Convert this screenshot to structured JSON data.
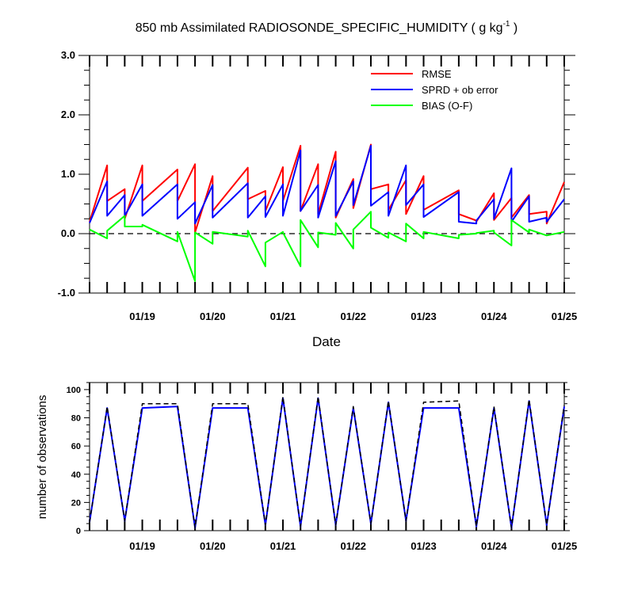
{
  "chart_data": [
    {
      "type": "line",
      "title": "850 mb Assimilated RADIOSONDE_SPECIFIC_HUMIDITY ( g kg",
      "title_exponent": "-1",
      "title_end": " )",
      "xlabel": "Date",
      "ylabel": "",
      "ylim": [
        -1.0,
        3.0
      ],
      "xlim": [
        0,
        6.75
      ],
      "x_ticks": [
        0.75,
        1.75,
        2.75,
        3.75,
        4.75,
        5.75,
        6.75
      ],
      "x_tick_labels": [
        "01/19",
        "01/20",
        "01/21",
        "01/22",
        "01/23",
        "01/24",
        "01/25"
      ],
      "y_ticks": [
        -1.0,
        0.0,
        1.0,
        2.0,
        3.0
      ],
      "y_tick_labels": [
        "-1.0",
        "0.0",
        "1.0",
        "2.0",
        "3.0"
      ],
      "zero_line": true,
      "legend_position": "top-right",
      "series": [
        {
          "name": "RMSE",
          "color": "#ff0000",
          "x": [
            0.0,
            0.25,
            0.25,
            0.5,
            0.5,
            0.75,
            0.75,
            1.25,
            1.25,
            1.5,
            1.5,
            1.75,
            1.75,
            2.25,
            2.25,
            2.5,
            2.5,
            2.75,
            2.75,
            3.0,
            3.0,
            3.25,
            3.25,
            3.5,
            3.5,
            3.75,
            3.75,
            4.0,
            4.0,
            4.25,
            4.25,
            4.5,
            4.5,
            4.75,
            4.75,
            5.25,
            5.25,
            5.5,
            5.5,
            5.75,
            5.75,
            6.0,
            6.0,
            6.25,
            6.25,
            6.5,
            6.5,
            6.75
          ],
          "y": [
            0.2,
            1.15,
            0.55,
            0.75,
            0.25,
            1.15,
            0.55,
            1.08,
            0.55,
            1.17,
            0.02,
            0.97,
            0.38,
            1.11,
            0.58,
            0.72,
            0.38,
            1.12,
            0.55,
            1.48,
            0.38,
            1.17,
            0.33,
            1.38,
            0.27,
            0.92,
            0.43,
            1.5,
            0.75,
            0.83,
            0.4,
            0.9,
            0.33,
            0.97,
            0.4,
            0.73,
            0.33,
            0.22,
            0.2,
            0.68,
            0.23,
            0.6,
            0.27,
            0.65,
            0.33,
            0.37,
            0.17,
            0.87
          ]
        },
        {
          "name": "SPRD + ob error",
          "color": "#0000ff",
          "x": [
            0.0,
            0.25,
            0.25,
            0.5,
            0.5,
            0.75,
            0.75,
            1.25,
            1.25,
            1.5,
            1.5,
            1.75,
            1.75,
            2.25,
            2.25,
            2.5,
            2.5,
            2.75,
            2.75,
            3.0,
            3.0,
            3.25,
            3.25,
            3.5,
            3.5,
            3.75,
            3.75,
            4.0,
            4.0,
            4.25,
            4.25,
            4.5,
            4.5,
            4.75,
            4.75,
            5.25,
            5.25,
            5.5,
            5.5,
            5.75,
            5.75,
            6.0,
            6.0,
            6.25,
            6.25,
            6.5,
            6.5,
            6.75
          ],
          "y": [
            0.18,
            0.88,
            0.3,
            0.65,
            0.3,
            0.83,
            0.3,
            0.83,
            0.25,
            0.53,
            0.17,
            0.82,
            0.27,
            0.85,
            0.27,
            0.63,
            0.28,
            0.83,
            0.3,
            1.4,
            0.38,
            0.82,
            0.27,
            1.22,
            0.3,
            0.88,
            0.48,
            1.48,
            0.47,
            0.7,
            0.3,
            1.15,
            0.48,
            0.83,
            0.28,
            0.7,
            0.2,
            0.17,
            0.22,
            0.58,
            0.25,
            1.1,
            0.2,
            0.63,
            0.2,
            0.27,
            0.2,
            0.58
          ]
        },
        {
          "name": "BIAS (O-F)",
          "color": "#00ff00",
          "x": [
            0.0,
            0.25,
            0.25,
            0.5,
            0.5,
            0.75,
            0.75,
            1.25,
            1.25,
            1.5,
            1.5,
            1.75,
            1.75,
            2.25,
            2.25,
            2.5,
            2.5,
            2.75,
            2.75,
            3.0,
            3.0,
            3.25,
            3.25,
            3.5,
            3.5,
            3.75,
            3.75,
            4.0,
            4.0,
            4.25,
            4.25,
            4.5,
            4.5,
            4.75,
            4.75,
            5.25,
            5.25,
            5.5,
            5.5,
            5.75,
            5.75,
            6.0,
            6.0,
            6.25,
            6.25,
            6.5,
            6.5,
            6.75
          ],
          "y": [
            0.07,
            -0.08,
            0.05,
            0.3,
            0.12,
            0.12,
            0.15,
            -0.13,
            0.03,
            -0.8,
            0.02,
            -0.17,
            0.03,
            -0.05,
            0.05,
            -0.55,
            -0.15,
            0.03,
            0.02,
            -0.55,
            0.23,
            -0.23,
            0.02,
            -0.02,
            0.18,
            -0.25,
            0.07,
            0.37,
            0.1,
            -0.07,
            0.02,
            -0.13,
            0.17,
            -0.08,
            0.03,
            -0.08,
            -0.02,
            0.0,
            0.01,
            0.05,
            0.02,
            -0.2,
            0.23,
            0.02,
            0.07,
            -0.03,
            -0.03,
            0.03
          ]
        }
      ]
    },
    {
      "type": "line",
      "title": "",
      "xlabel": "",
      "ylabel": "number of observations",
      "ylim": [
        0,
        105
      ],
      "xlim": [
        0,
        6.75
      ],
      "x_ticks": [
        0.75,
        1.75,
        2.75,
        3.75,
        4.75,
        5.75,
        6.75
      ],
      "x_tick_labels": [
        "01/19",
        "01/20",
        "01/21",
        "01/22",
        "01/23",
        "01/24",
        "01/25"
      ],
      "y_ticks": [
        0,
        20,
        40,
        60,
        80,
        100
      ],
      "y_tick_labels": [
        "0",
        "20",
        "40",
        "60",
        "80",
        "100"
      ],
      "series": [
        {
          "color": "#0000ff",
          "dash": false,
          "x": [
            0.0,
            0.25,
            0.5,
            0.75,
            1.25,
            1.5,
            1.75,
            2.25,
            2.5,
            2.75,
            3.0,
            3.25,
            3.5,
            3.75,
            4.0,
            4.25,
            4.5,
            4.75,
            5.25,
            5.5,
            5.75,
            6.0,
            6.25,
            6.5,
            6.75
          ],
          "y": [
            6,
            87,
            7,
            87,
            88,
            2,
            87,
            87,
            4,
            94,
            3,
            94,
            4,
            87,
            5,
            91,
            7,
            87,
            87,
            3,
            87,
            2,
            92,
            4,
            88
          ]
        },
        {
          "color": "#000000",
          "dash": true,
          "x": [
            0.0,
            0.25,
            0.5,
            0.75,
            1.25,
            1.5,
            1.75,
            2.25,
            2.5,
            2.75,
            3.0,
            3.25,
            3.5,
            3.75,
            4.0,
            4.25,
            4.5,
            4.75,
            5.25,
            5.5,
            5.75,
            6.0,
            6.25,
            6.5,
            6.75
          ],
          "y": [
            6,
            88,
            7,
            90,
            90,
            2,
            90,
            90,
            4,
            95,
            3,
            95,
            4,
            88,
            5,
            92,
            7,
            91,
            92,
            3,
            88,
            2,
            93,
            4,
            89
          ]
        }
      ]
    }
  ]
}
